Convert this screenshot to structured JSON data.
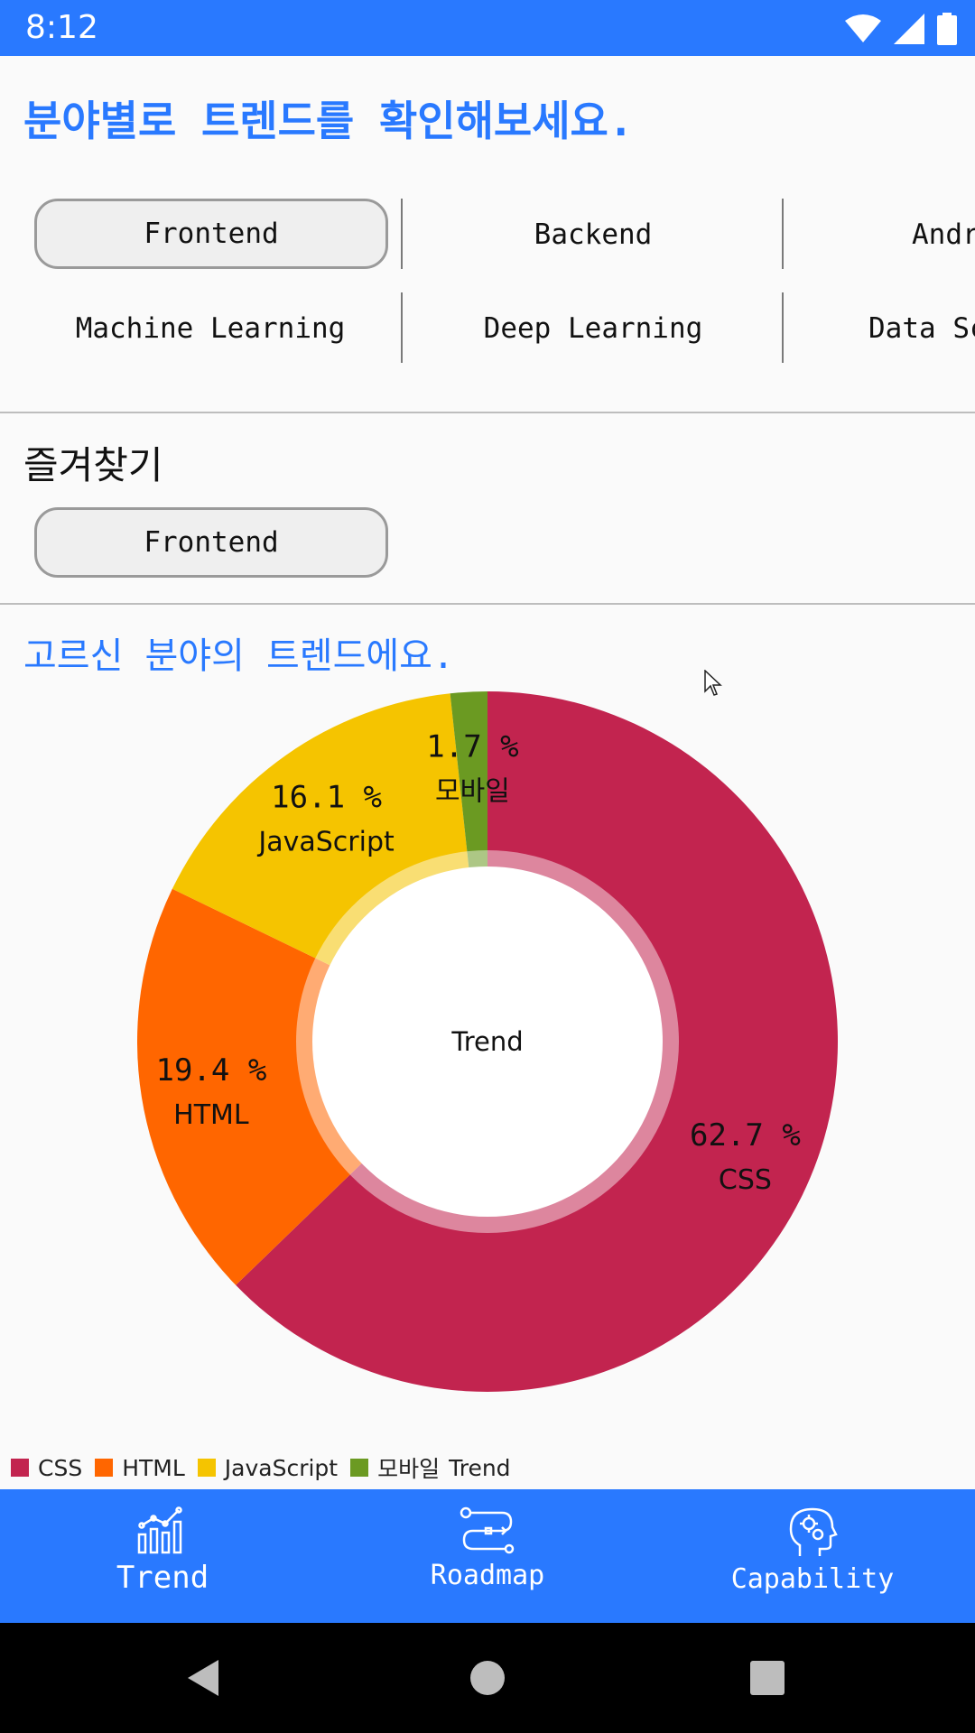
{
  "status_bar": {
    "time": "8:12"
  },
  "header": {
    "title": "분야별로 트렌드를 확인해보세요."
  },
  "fields": {
    "row1": [
      "Frontend",
      "Backend",
      "Andr"
    ],
    "row2": [
      "Machine Learning",
      "Deep Learning",
      "Data Sc"
    ],
    "selected": "Frontend"
  },
  "favorites": {
    "title": "즐겨찾기",
    "items": [
      "Frontend"
    ]
  },
  "trend_section": {
    "title": "고르신 분야의 트렌드에요."
  },
  "chart_data": {
    "type": "pie",
    "center_label": "Trend",
    "slices": [
      {
        "name": "CSS",
        "value": 62.7,
        "label": "62.7 %",
        "color": "#c2244f"
      },
      {
        "name": "HTML",
        "value": 19.4,
        "label": "19.4 %",
        "color": "#ff6600"
      },
      {
        "name": "JavaScript",
        "value": 16.1,
        "label": "16.1 %",
        "color": "#f5c400"
      },
      {
        "name": "모바일",
        "value": 1.7,
        "label": "1.7 %",
        "color": "#6b9a22"
      }
    ],
    "legend": {
      "placement": "bottom-left",
      "suffix": "Trend"
    }
  },
  "bottom_nav": {
    "items": [
      {
        "label": "Trend",
        "icon": "chart-icon",
        "active": true
      },
      {
        "label": "Roadmap",
        "icon": "roadmap-icon",
        "active": false
      },
      {
        "label": "Capability",
        "icon": "brain-gear-icon",
        "active": false
      }
    ]
  },
  "colors": {
    "accent": "#2979ff",
    "nav_bar": "#000000"
  }
}
